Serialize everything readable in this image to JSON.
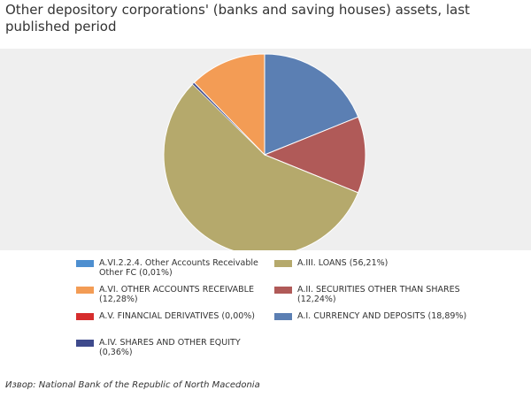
{
  "chart_data": {
    "type": "pie",
    "title": "Other depository corporations' (banks and saving houses) assets, last published period",
    "slices": [
      {
        "label": "A.I. CURRENCY AND DEPOSITS (18,89%)",
        "value": 18.89,
        "color": "#5b7fb3"
      },
      {
        "label": "A.II. SECURITIES OTHER THAN SHARES (12,24%)",
        "value": 12.24,
        "color": "#b05a58"
      },
      {
        "label": "A.III. LOANS (56,21%)",
        "value": 56.21,
        "color": "#b5a96c"
      },
      {
        "label": "A.IV. SHARES AND OTHER EQUITY (0,36%)",
        "value": 0.36,
        "color": "#3e4a8c"
      },
      {
        "label": "A.V. FINANCIAL DERIVATIVES (0,00%)",
        "value": 0.0,
        "color": "#d62d2d"
      },
      {
        "label": "A.VI. OTHER ACCOUNTS RECEIVABLE (12,28%)",
        "value": 12.28,
        "color": "#f39c55"
      },
      {
        "label": "A.VI.2.2.4. Other Accounts Receivable Other FC (0,01%)",
        "value": 0.01,
        "color": "#4e8fd0"
      }
    ],
    "legend_order": [
      6,
      5,
      4,
      3,
      2,
      1,
      0
    ],
    "legend_placement": "bottom"
  },
  "source": "Извор: National Bank of the Republic of North Macedonia"
}
